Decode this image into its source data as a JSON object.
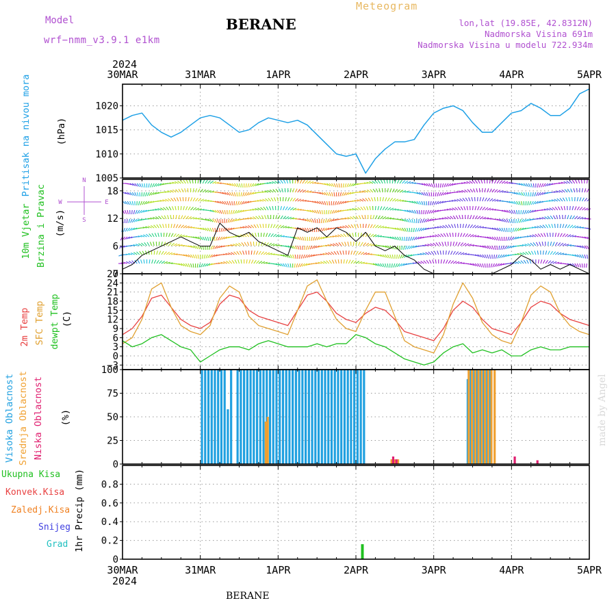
{
  "header": {
    "model_label": "Model",
    "model_name": "wrf−nmm_v3.9.1  e1km",
    "station": "BERANE",
    "meteogram": "Meteogram",
    "lonlat": "lon,lat (19.85E, 42.8312N)",
    "elev": "Nadmorska Visina 691m",
    "elev_model": "Nadmorska Visina u modelu 722.934m",
    "year_top": "2024",
    "year_bottom": "2024",
    "footer": "BERANE",
    "credit": "made by Angel"
  },
  "colors": {
    "pressure": "#1ea0e6",
    "t2m": "#e84040",
    "sfc": "#e0a030",
    "dew": "#20c020",
    "high_cloud": "#20a0e0",
    "mid_cloud": "#f0a030",
    "low_cloud": "#e02070",
    "rain_total": "#20c020",
    "purple": "#b050d0",
    "wind_speed": "#000000"
  },
  "dates": [
    "30MAR",
    "31MAR",
    "1APR",
    "2APR",
    "3APR",
    "4APR",
    "5APR"
  ],
  "chart_data": [
    {
      "id": "pressure",
      "type": "line",
      "ylabel": "Pritisak na nivou mora",
      "unit": "(hPa)",
      "ylim": [
        1005,
        1024.5
      ],
      "yticks": [
        1005,
        1010,
        1015,
        1020
      ],
      "xlim": [
        0,
        144
      ],
      "x": [
        0,
        3,
        6,
        9,
        12,
        15,
        18,
        21,
        24,
        27,
        30,
        33,
        36,
        39,
        42,
        45,
        48,
        51,
        54,
        57,
        60,
        63,
        66,
        69,
        72,
        75,
        78,
        81,
        84,
        87,
        90,
        93,
        96,
        99,
        102,
        105,
        108,
        111,
        114,
        117,
        120,
        123,
        126,
        129,
        132,
        135,
        138,
        141,
        144
      ],
      "series": [
        {
          "values": [
            1017,
            1018,
            1018.5,
            1016,
            1014.5,
            1013.5,
            1014.5,
            1016,
            1017.5,
            1018,
            1017.5,
            1016,
            1014.5,
            1015,
            1016.5,
            1017.5,
            1017,
            1016.5,
            1017,
            1016,
            1014,
            1012,
            1010,
            1009.5,
            1010,
            1006,
            1009,
            1011,
            1012.5,
            1012.5,
            1013,
            1016,
            1018.5,
            1019.5,
            1020,
            1019,
            1016.5,
            1014.5,
            1014.5,
            1016.5,
            1018.5,
            1019,
            1020.5,
            1019.5,
            1018,
            1018,
            1019.5,
            1022.5,
            1023.5
          ]
        }
      ]
    },
    {
      "id": "wind",
      "type": "line",
      "ylabel": "10m Vjetar",
      "ylabel2": "Brzina i Pravac",
      "unit": "(m/s)",
      "compass_n": "N",
      "compass_s": "S",
      "compass_w": "W",
      "compass_e": "E",
      "ylim": [
        0,
        20.5
      ],
      "yticks": [
        0,
        6,
        12,
        18
      ],
      "xlim": [
        0,
        144
      ],
      "x": [
        0,
        3,
        6,
        9,
        12,
        15,
        18,
        21,
        24,
        27,
        30,
        33,
        36,
        39,
        42,
        45,
        48,
        51,
        54,
        57,
        60,
        63,
        66,
        69,
        72,
        75,
        78,
        81,
        84,
        87,
        90,
        93,
        96,
        99,
        102,
        105,
        108,
        111,
        114,
        117,
        120,
        123,
        126,
        129,
        132,
        135,
        138,
        141,
        144
      ],
      "series": [
        {
          "values": [
            1,
            2,
            4,
            5,
            6,
            7,
            8,
            7,
            6,
            6,
            11,
            9,
            8,
            9,
            7,
            6,
            5,
            4,
            10,
            9,
            10,
            8,
            10,
            9,
            7,
            9,
            6,
            5,
            6,
            4,
            3,
            1,
            0,
            0,
            0,
            0,
            0,
            0,
            0,
            1,
            2,
            4,
            3,
            1,
            2,
            1,
            2,
            1,
            0
          ]
        }
      ]
    },
    {
      "id": "temperature",
      "type": "line",
      "ylabel": "2m Temp",
      "ylabel2": "SFC Temp",
      "ylabel3": "dewpt Temp",
      "unit": "(C)",
      "ylim": [
        -4.5,
        27
      ],
      "yticks": [
        -3,
        0,
        3,
        6,
        9,
        12,
        15,
        18,
        21,
        24,
        27
      ],
      "xlim": [
        0,
        144
      ],
      "x": [
        0,
        3,
        6,
        9,
        12,
        15,
        18,
        21,
        24,
        27,
        30,
        33,
        36,
        39,
        42,
        45,
        48,
        51,
        54,
        57,
        60,
        63,
        66,
        69,
        72,
        75,
        78,
        81,
        84,
        87,
        90,
        93,
        96,
        99,
        102,
        105,
        108,
        111,
        114,
        117,
        120,
        123,
        126,
        129,
        132,
        135,
        138,
        141,
        144
      ],
      "series": [
        {
          "name": "2m Temp",
          "values": [
            7,
            9,
            13,
            19,
            20,
            16,
            12,
            10,
            9,
            11,
            17,
            20,
            19,
            15,
            13,
            12,
            11,
            10,
            15,
            20,
            21,
            18,
            14,
            12,
            11,
            14,
            16,
            15,
            12,
            8,
            7,
            6,
            5,
            9,
            15,
            18,
            16,
            12,
            9,
            8,
            7,
            11,
            16,
            18,
            17,
            14,
            12,
            11,
            10
          ]
        },
        {
          "name": "SFC Temp",
          "values": [
            4,
            6,
            12,
            22,
            24,
            16,
            10,
            8,
            7,
            10,
            19,
            23,
            21,
            13,
            10,
            9,
            8,
            7,
            15,
            23,
            25,
            18,
            12,
            9,
            8,
            15,
            21,
            21,
            13,
            5,
            3,
            2,
            1,
            7,
            17,
            24,
            19,
            11,
            7,
            5,
            4,
            11,
            20,
            23,
            21,
            14,
            10,
            8,
            7
          ]
        },
        {
          "name": "dewpt Temp",
          "values": [
            5,
            3,
            4,
            6,
            7,
            5,
            3,
            2,
            -2,
            0,
            2,
            3,
            3,
            2,
            4,
            5,
            4,
            3,
            3,
            3,
            4,
            3,
            4,
            4,
            7,
            6,
            4,
            3,
            1,
            -1,
            -2,
            -3,
            -2,
            1,
            3,
            4,
            1,
            2,
            1,
            2,
            0,
            0,
            2,
            3,
            2,
            2,
            3,
            3,
            3
          ]
        }
      ]
    },
    {
      "id": "clouds",
      "type": "bar",
      "ylabel": "Visoka Oblacnost",
      "ylabel2": "Srednja Oblacnost",
      "ylabel3": "Niska Oblacnost",
      "unit": "(%)",
      "ylim": [
        0,
        100
      ],
      "yticks": [
        0,
        25,
        50,
        75,
        100
      ],
      "xlim": [
        0,
        144
      ],
      "series": [
        {
          "name": "Visoka Oblacnost",
          "x": [
            24.5,
            25.5,
            26.5,
            27.5,
            28.5,
            29.5,
            30.5,
            31.5,
            32.5,
            33.5,
            35.5,
            36.5,
            37.5,
            38.5,
            39.5,
            40.5,
            41.5,
            42.5,
            43.5,
            44.5,
            45.5,
            46.5,
            47.5,
            48.5,
            49.5,
            50.5,
            51.5,
            52.5,
            53.5,
            54.5,
            55.5,
            56.5,
            57.5,
            58.5,
            59.5,
            60.5,
            61.5,
            62.5,
            63.5,
            64.5,
            65.5,
            66.5,
            67.5,
            68.5,
            69.5,
            70.5,
            71.5,
            72.5,
            73.5,
            74.5,
            106.5,
            107.5,
            108.5,
            109.5,
            110.5,
            111.5,
            112.5,
            113.5
          ],
          "values": [
            100,
            100,
            100,
            100,
            100,
            100,
            100,
            100,
            58,
            100,
            100,
            100,
            100,
            100,
            100,
            100,
            100,
            100,
            100,
            100,
            100,
            100,
            100,
            100,
            100,
            100,
            100,
            100,
            100,
            100,
            100,
            100,
            100,
            100,
            100,
            100,
            100,
            100,
            100,
            100,
            100,
            100,
            100,
            100,
            100,
            100,
            100,
            100,
            100,
            100,
            90,
            100,
            100,
            100,
            100,
            100,
            100,
            100
          ]
        },
        {
          "name": "Srednja Oblacnost",
          "x": [
            44.2,
            44.8,
            106.8,
            107.8,
            108.8,
            109.8,
            110.8,
            111.8,
            112.8,
            113.8,
            114.8,
            83,
            84,
            85
          ],
          "values": [
            45,
            50,
            100,
            100,
            100,
            100,
            100,
            100,
            100,
            100,
            100,
            5,
            5,
            5
          ]
        },
        {
          "name": "Niska Oblacnost",
          "x": [
            83.5,
            84.5,
            121,
            128
          ],
          "values": [
            8,
            5,
            8,
            4
          ]
        }
      ]
    },
    {
      "id": "precip",
      "type": "bar",
      "ylabel": "1hr Precip (mm)",
      "ylim": [
        0,
        1
      ],
      "yticks": [
        0,
        0.2,
        0.4,
        0.6,
        0.8
      ],
      "xlim": [
        0,
        144
      ],
      "legend": [
        "Ukupna  Kisa",
        "Konvek.Kisa",
        "Zaledj.Kisa",
        "Snijeg",
        "Grad"
      ],
      "legend_colors": [
        "#20c020",
        "#e84040",
        "#f08020",
        "#4040e0",
        "#20c0c0"
      ],
      "series": [
        {
          "name": "Ukupna  Kisa",
          "x": [
            74
          ],
          "values": [
            0.16
          ]
        }
      ]
    }
  ]
}
